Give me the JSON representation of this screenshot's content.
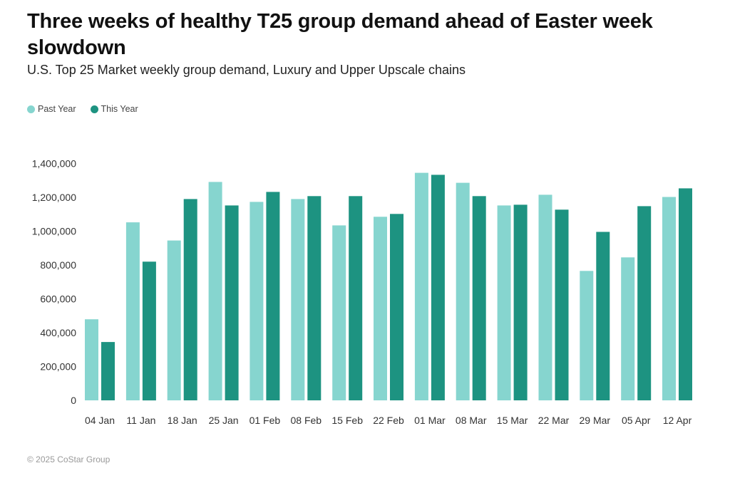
{
  "header": {
    "title": "Three weeks of healthy T25 group demand ahead of Easter week slowdown",
    "subtitle": "U.S. Top 25 Market weekly group demand, Luxury and Upper Upscale chains"
  },
  "footer": {
    "copyright": "© 2025 CoStar Group"
  },
  "colors": {
    "past_year": "#86D5CF",
    "this_year": "#1D9381"
  },
  "chart_data": {
    "type": "bar",
    "title": "Three weeks of healthy T25 group demand ahead of Easter week slowdown",
    "subtitle": "U.S. Top 25 Market weekly group demand, Luxury and Upper Upscale chains",
    "xlabel": "",
    "ylabel": "",
    "ylim": [
      0,
      1400000
    ],
    "yticks": [
      0,
      200000,
      400000,
      600000,
      800000,
      1000000,
      1200000,
      1400000
    ],
    "ytick_labels": [
      "0",
      "200,000",
      "400,000",
      "600,000",
      "800,000",
      "1,000,000",
      "1,200,000",
      "1,400,000"
    ],
    "grid": false,
    "legend": {
      "position": "top-left",
      "entries": [
        "Past Year",
        "This Year"
      ]
    },
    "categories": [
      "04 Jan",
      "11 Jan",
      "18 Jan",
      "25 Jan",
      "01 Feb",
      "08 Feb",
      "15 Feb",
      "22 Feb",
      "01 Mar",
      "08 Mar",
      "15 Mar",
      "22 Mar",
      "29 Mar",
      "05 Apr",
      "12 Apr"
    ],
    "series": [
      {
        "name": "Past Year",
        "color": "#86D5CF",
        "values": [
          479000,
          1052000,
          945000,
          1291000,
          1173000,
          1190000,
          1034000,
          1085000,
          1345000,
          1286000,
          1152000,
          1215000,
          765000,
          845000,
          1202000
        ]
      },
      {
        "name": "This Year",
        "color": "#1D9381",
        "values": [
          345000,
          820000,
          1190000,
          1152000,
          1232000,
          1207000,
          1207000,
          1102000,
          1333000,
          1207000,
          1156000,
          1127000,
          996000,
          1148000,
          1253000
        ]
      }
    ]
  }
}
